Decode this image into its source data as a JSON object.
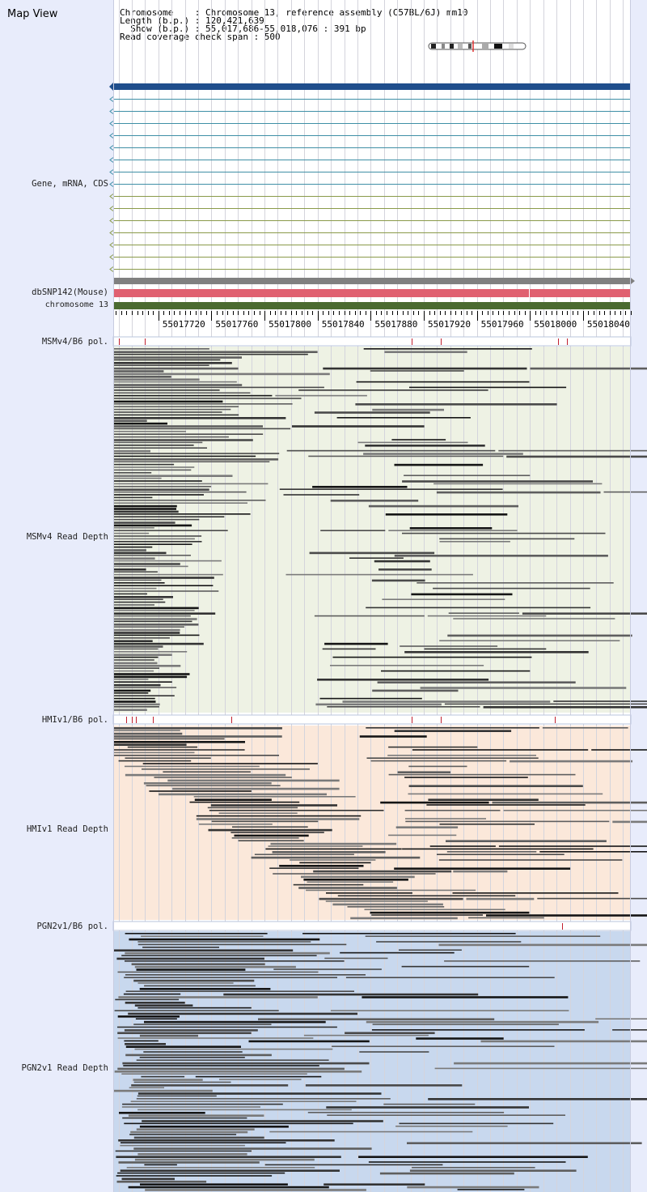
{
  "title": "Map View",
  "info": {
    "chromosome_line": "Chromosome    : Chromosome 13, reference assembly (C57BL/6J) mm10",
    "length_line": "Length (b.p.) : 120,421,639",
    "show_line": "  Show (b.p.) : 55,017,686-55,018,076 : 391 bp",
    "span_line": "Read coverage check span : 500"
  },
  "region": {
    "start": 55017686,
    "end": 55018076
  },
  "tracks": {
    "gene": "Gene, mRNA, CDS",
    "dbsnp": "dbSNP142(Mouse)",
    "chromosome": "chromosome 13",
    "msm_pol": "MSMv4/B6 pol.",
    "msm_depth": "MSMv4 Read Depth",
    "hmi_pol": "HMIv1/B6 pol.",
    "hmi_depth": "HMIv1 Read Depth",
    "pgn_pol": "PGN2v1/B6 pol.",
    "pgn_depth": "PGN2v1 Read Depth"
  },
  "axis_ticks": [
    "55017720",
    "55017760",
    "55017800",
    "55017840",
    "55017880",
    "55017920",
    "55017960",
    "55018000",
    "55018040"
  ],
  "axis_tick_values": [
    55017720,
    55017760,
    55017800,
    55017840,
    55017880,
    55017920,
    55017960,
    55018000,
    55018040
  ],
  "colors": {
    "panel_bg": "#e8ecfb",
    "gene_primary": "#1f4e8c",
    "transcript_blue": "#3f8fa6",
    "transcript_olive": "#8a9a4a",
    "gray_bar": "#808080",
    "dbsnp": "#e06070",
    "chromosome": "#4a6a30",
    "variant": "#c02030",
    "msm_bg": "#eef2e4",
    "hmi_bg": "#fbe8da",
    "pgn_bg": "#c8d8ee",
    "read_dark": "#151515",
    "read_mid": "#4a4a4a",
    "read_light": "#7a7a7a"
  },
  "variants": {
    "msm": [
      55017690,
      55017710,
      55017911,
      55017933,
      55018021,
      55018028
    ],
    "hmi": [
      55017696,
      55017700,
      55017703,
      55017716,
      55017775,
      55017911,
      55017933,
      55018019
    ],
    "pgn": [
      55018024
    ]
  }
}
